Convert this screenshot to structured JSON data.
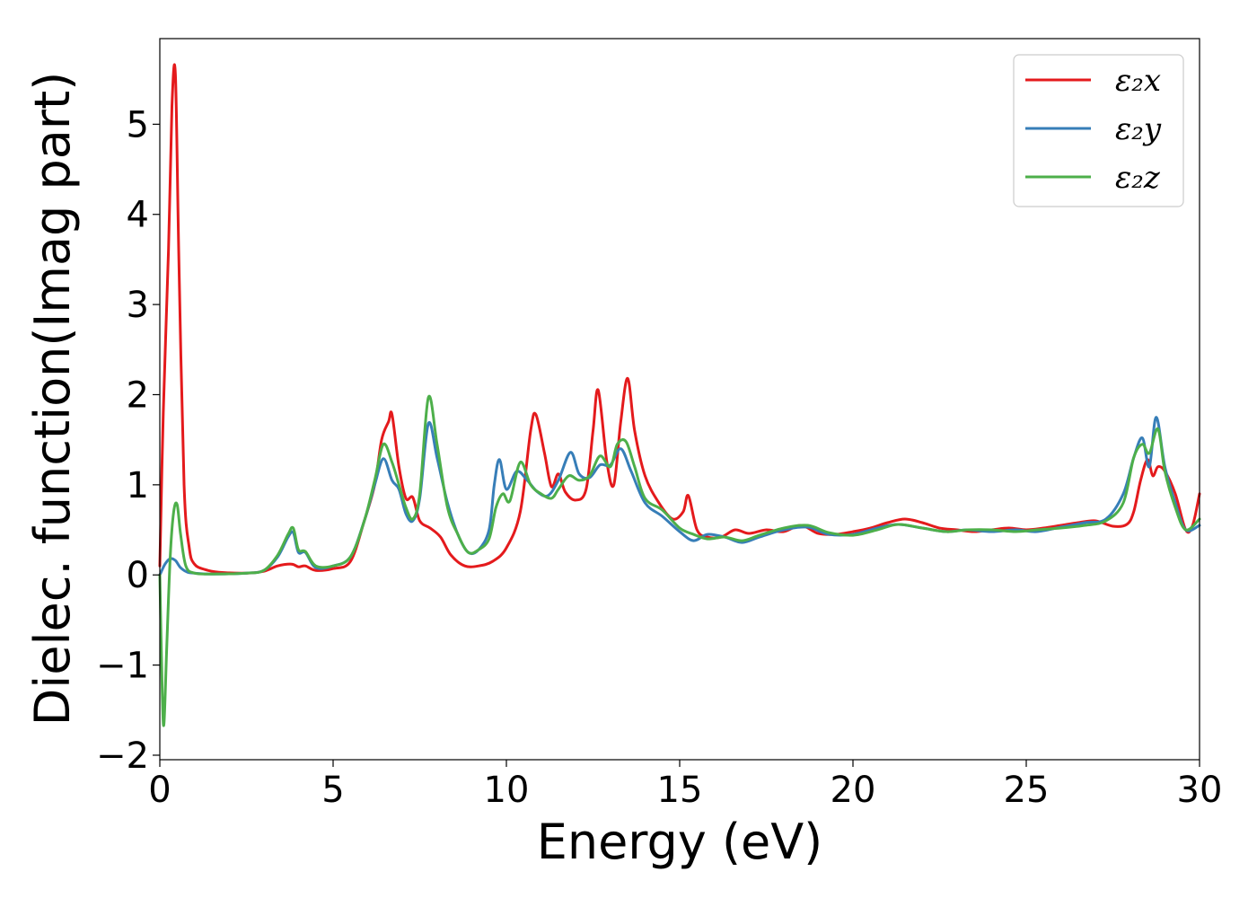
{
  "chart_data": {
    "type": "line",
    "xlabel": "Energy (eV)",
    "ylabel": "Dielec. function(Imag part)",
    "xlim": [
      0,
      30
    ],
    "ylim": [
      -2.05,
      5.95
    ],
    "xticks": [
      0,
      5,
      10,
      15,
      20,
      25,
      30
    ],
    "yticks": [
      -2,
      -1,
      0,
      1,
      2,
      3,
      4,
      5
    ],
    "xtick_labels": [
      "0",
      "5",
      "10",
      "15",
      "20",
      "25",
      "30"
    ],
    "ytick_labels": [
      "−2",
      "−1",
      "0",
      "1",
      "2",
      "3",
      "4",
      "5"
    ],
    "grid": false,
    "legend_position": "top-right",
    "series": [
      {
        "name": "ε₂x",
        "color": "#e41a1c",
        "x": [
          0,
          0.1,
          0.25,
          0.35,
          0.45,
          0.55,
          0.7,
          0.85,
          1.0,
          1.3,
          1.7,
          2.5,
          3.0,
          3.4,
          3.8,
          4.0,
          4.2,
          4.5,
          5.0,
          5.5,
          5.9,
          6.2,
          6.4,
          6.6,
          6.7,
          6.9,
          7.1,
          7.3,
          7.5,
          7.8,
          8.1,
          8.4,
          8.8,
          9.2,
          9.6,
          10.0,
          10.4,
          10.7,
          10.85,
          11.1,
          11.3,
          11.5,
          11.7,
          12.0,
          12.3,
          12.5,
          12.65,
          12.9,
          13.1,
          13.3,
          13.5,
          13.7,
          14.0,
          14.4,
          14.8,
          15.1,
          15.25,
          15.5,
          15.8,
          16.2,
          16.6,
          17.0,
          17.5,
          18.0,
          18.5,
          19.0,
          19.5,
          20.0,
          20.5,
          21.0,
          21.5,
          22.0,
          22.5,
          23.0,
          23.5,
          24.0,
          24.5,
          25.0,
          25.5,
          26.0,
          26.5,
          27.0,
          27.5,
          27.9,
          28.1,
          28.3,
          28.5,
          28.65,
          28.8,
          29.0,
          29.3,
          29.6,
          29.8,
          30.0
        ],
        "y": [
          0.1,
          1.8,
          3.6,
          5.2,
          5.55,
          3.5,
          1.0,
          0.3,
          0.12,
          0.06,
          0.03,
          0.02,
          0.04,
          0.1,
          0.12,
          0.09,
          0.1,
          0.05,
          0.07,
          0.15,
          0.6,
          1.0,
          1.5,
          1.7,
          1.78,
          1.2,
          0.85,
          0.86,
          0.6,
          0.52,
          0.42,
          0.22,
          0.1,
          0.1,
          0.15,
          0.3,
          0.7,
          1.6,
          1.78,
          1.35,
          0.98,
          1.12,
          0.92,
          0.83,
          0.95,
          1.6,
          2.05,
          1.25,
          1.0,
          1.7,
          2.18,
          1.6,
          1.1,
          0.8,
          0.62,
          0.7,
          0.88,
          0.5,
          0.42,
          0.42,
          0.5,
          0.46,
          0.5,
          0.48,
          0.55,
          0.46,
          0.45,
          0.48,
          0.52,
          0.58,
          0.62,
          0.58,
          0.52,
          0.5,
          0.48,
          0.5,
          0.52,
          0.5,
          0.52,
          0.55,
          0.58,
          0.6,
          0.54,
          0.56,
          0.7,
          1.05,
          1.28,
          1.1,
          1.2,
          1.15,
          0.9,
          0.5,
          0.55,
          0.9
        ]
      },
      {
        "name": "ε₂y",
        "color": "#377eb8",
        "x": [
          0,
          0.15,
          0.3,
          0.45,
          0.6,
          0.8,
          1.0,
          1.5,
          2.5,
          3.0,
          3.4,
          3.7,
          3.85,
          4.0,
          4.2,
          4.5,
          5.0,
          5.5,
          5.9,
          6.2,
          6.45,
          6.7,
          6.9,
          7.1,
          7.3,
          7.5,
          7.75,
          8.0,
          8.3,
          8.6,
          8.9,
          9.2,
          9.5,
          9.65,
          9.8,
          10.0,
          10.3,
          10.6,
          10.9,
          11.2,
          11.5,
          11.85,
          12.1,
          12.4,
          12.7,
          13.0,
          13.3,
          13.6,
          14.0,
          14.5,
          15.0,
          15.4,
          15.8,
          16.3,
          16.8,
          17.3,
          18.0,
          18.7,
          19.3,
          20.0,
          20.7,
          21.3,
          22.0,
          22.7,
          23.3,
          24.0,
          24.7,
          25.3,
          26.0,
          26.7,
          27.3,
          27.8,
          28.1,
          28.35,
          28.55,
          28.75,
          29.0,
          29.3,
          29.6,
          30.0
        ],
        "y": [
          0.0,
          0.12,
          0.18,
          0.16,
          0.08,
          0.03,
          0.02,
          0.01,
          0.02,
          0.05,
          0.2,
          0.42,
          0.47,
          0.25,
          0.25,
          0.08,
          0.1,
          0.2,
          0.6,
          1.0,
          1.29,
          1.05,
          0.95,
          0.68,
          0.6,
          0.85,
          1.68,
          1.3,
          0.8,
          0.45,
          0.25,
          0.28,
          0.5,
          1.0,
          1.28,
          0.95,
          1.15,
          1.05,
          0.92,
          0.88,
          1.05,
          1.36,
          1.12,
          1.08,
          1.22,
          1.22,
          1.4,
          1.15,
          0.8,
          0.65,
          0.48,
          0.38,
          0.45,
          0.42,
          0.36,
          0.42,
          0.5,
          0.53,
          0.45,
          0.45,
          0.52,
          0.56,
          0.52,
          0.48,
          0.5,
          0.48,
          0.5,
          0.48,
          0.53,
          0.58,
          0.62,
          0.9,
          1.3,
          1.52,
          1.2,
          1.75,
          1.2,
          0.8,
          0.5,
          0.55
        ]
      },
      {
        "name": "ε₂z",
        "color": "#4daf4a",
        "x": [
          0,
          0.07,
          0.12,
          0.2,
          0.3,
          0.4,
          0.5,
          0.6,
          0.75,
          1.0,
          1.5,
          2.5,
          3.0,
          3.4,
          3.7,
          3.85,
          4.0,
          4.2,
          4.5,
          5.0,
          5.5,
          5.9,
          6.2,
          6.45,
          6.7,
          6.9,
          7.1,
          7.3,
          7.5,
          7.75,
          8.0,
          8.3,
          8.6,
          8.9,
          9.2,
          9.5,
          9.7,
          9.9,
          10.1,
          10.4,
          10.7,
          11.0,
          11.3,
          11.5,
          11.8,
          12.1,
          12.4,
          12.7,
          13.0,
          13.2,
          13.45,
          13.7,
          14.0,
          14.5,
          15.0,
          15.4,
          15.8,
          16.3,
          16.8,
          17.3,
          18.0,
          18.7,
          19.3,
          20.0,
          20.7,
          21.3,
          22.0,
          22.7,
          23.3,
          24.0,
          24.7,
          25.3,
          26.0,
          26.7,
          27.3,
          27.8,
          28.1,
          28.35,
          28.55,
          28.8,
          29.0,
          29.3,
          29.6,
          30.0
        ],
        "y": [
          0.0,
          -1.3,
          -1.65,
          -0.8,
          0.2,
          0.7,
          0.78,
          0.45,
          0.1,
          0.02,
          0.01,
          0.02,
          0.05,
          0.22,
          0.45,
          0.52,
          0.28,
          0.26,
          0.1,
          0.1,
          0.2,
          0.6,
          1.05,
          1.45,
          1.25,
          1.0,
          0.75,
          0.62,
          0.9,
          1.97,
          1.45,
          0.75,
          0.45,
          0.25,
          0.28,
          0.4,
          0.75,
          0.9,
          0.82,
          1.25,
          1.0,
          0.9,
          0.85,
          0.95,
          1.1,
          1.05,
          1.1,
          1.32,
          1.2,
          1.45,
          1.48,
          1.2,
          0.85,
          0.72,
          0.52,
          0.45,
          0.4,
          0.42,
          0.38,
          0.44,
          0.52,
          0.55,
          0.47,
          0.44,
          0.5,
          0.56,
          0.52,
          0.48,
          0.5,
          0.5,
          0.48,
          0.5,
          0.52,
          0.55,
          0.6,
          0.8,
          1.3,
          1.45,
          1.35,
          1.62,
          1.15,
          0.75,
          0.5,
          0.62
        ]
      }
    ]
  }
}
